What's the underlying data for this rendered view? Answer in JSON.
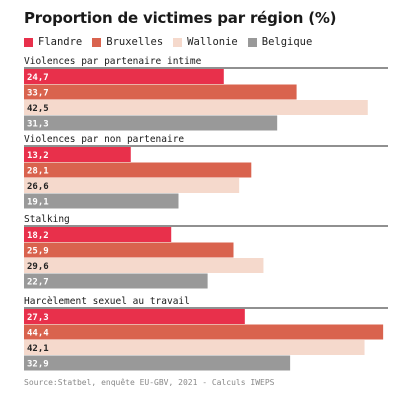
{
  "title": "Proportion de victimes par région (%)",
  "source": "Source:Statbel, enquête EU-GBV, 2021 - Calculs IWEPS",
  "colors": {
    "Flandre": "#e8304b",
    "Bruxelles": "#d9634e",
    "Wallonie": "#f5d9cc",
    "Belgique": "#999999"
  },
  "legend": [
    "Flandre",
    "Bruxelles",
    "Wallonie",
    "Belgique"
  ],
  "chart_data": {
    "type": "bar",
    "orientation": "horizontal",
    "xlim": [
      0,
      45
    ],
    "series_names": [
      "Flandre",
      "Bruxelles",
      "Wallonie",
      "Belgique"
    ],
    "groups": [
      {
        "label": "Violences par partenaire intime",
        "values": [
          24.7,
          33.7,
          42.5,
          31.3
        ],
        "labels": [
          "24,7",
          "33,7",
          "42,5",
          "31,3"
        ]
      },
      {
        "label": "Violences par non partenaire",
        "values": [
          13.2,
          28.1,
          26.6,
          19.1
        ],
        "labels": [
          "13,2",
          "28,1",
          "26,6",
          "19,1"
        ]
      },
      {
        "label": "Stalking",
        "values": [
          18.2,
          25.9,
          29.6,
          22.7
        ],
        "labels": [
          "18,2",
          "25,9",
          "29,6",
          "22,7"
        ]
      },
      {
        "label": "Harcèlement sexuel au travail",
        "values": [
          27.3,
          44.4,
          42.1,
          32.9
        ],
        "labels": [
          "27,3",
          "44,4",
          "42,1",
          "32,9"
        ]
      }
    ]
  }
}
